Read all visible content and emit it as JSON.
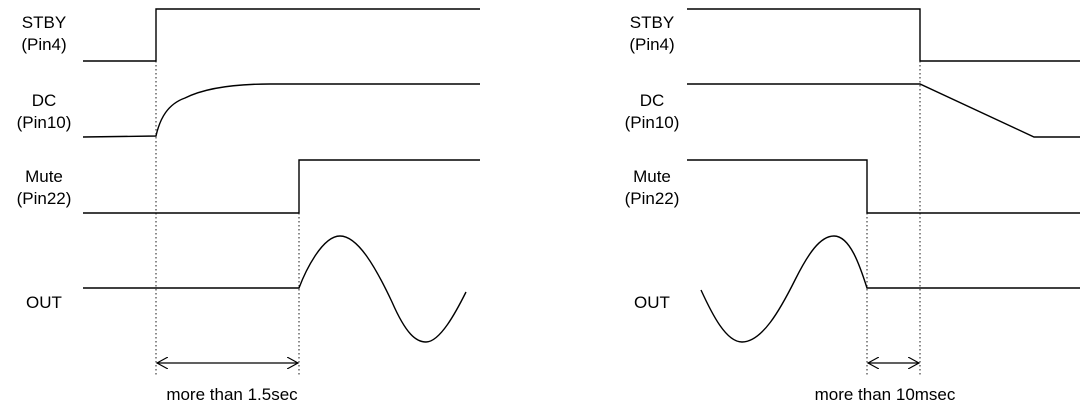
{
  "power_on": {
    "signals": {
      "stby": {
        "name": "STBY",
        "pin": "(Pin4)"
      },
      "dc": {
        "name": "DC",
        "pin": "(Pin10)"
      },
      "mute": {
        "name": "Mute",
        "pin": "(Pin22)"
      },
      "out": {
        "name": "OUT"
      }
    },
    "interval_label": "more than 1.5sec"
  },
  "power_off": {
    "signals": {
      "stby": {
        "name": "STBY",
        "pin": "(Pin4)"
      },
      "dc": {
        "name": "DC",
        "pin": "(Pin10)"
      },
      "mute": {
        "name": "Mute",
        "pin": "(Pin22)"
      },
      "out": {
        "name": "OUT"
      }
    },
    "interval_label": "more than 10msec"
  }
}
